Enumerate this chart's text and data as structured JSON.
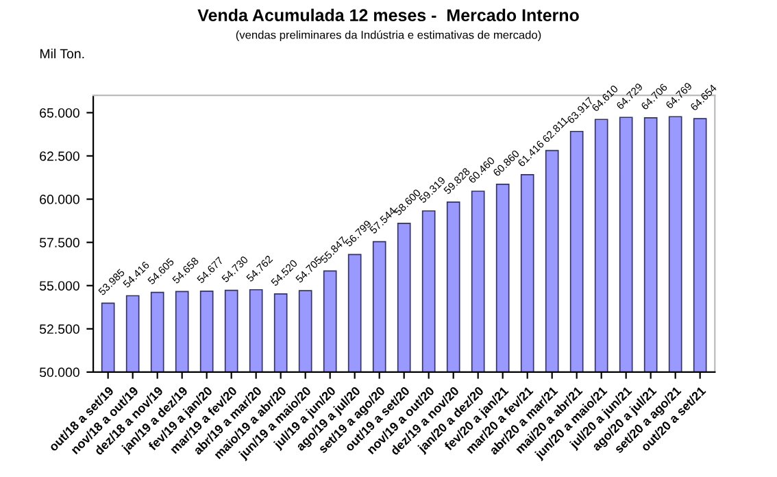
{
  "chart_data": {
    "type": "bar",
    "title": "Venda Acumulada 12 meses -  Mercado Interno",
    "subtitle": "(vendas preliminares da Indústria e estimativas de mercado)",
    "ylabel": "Mil Ton.",
    "categories": [
      "out/18 a set/19",
      "nov/18 a out/19",
      "dez/18 a nov/19",
      "jan/19 a dez/19",
      "fev/19 a jan/20",
      "mar/19 a fev/20",
      "abr/19 a mar/20",
      "maio/19 a abr/20",
      "jun/19 a maio/20",
      "jul/19 a jun/20",
      "ago/19 a jul/20",
      "set/19 a ago/20",
      "out/19 a set/20",
      "nov/19 a out/20",
      "dez/19 a nov/20",
      "jan/20 a dez/20",
      "fev/20 a jan/21",
      "mar/20 a fev/21",
      "abr/20 a mar/21",
      "mai/20 a abr/21",
      "jun/20 a maio/21",
      "jul/20 a jun/21",
      "ago/20 a jul/21",
      "set/20 a ago/21",
      "out/20 a set/21"
    ],
    "series": [
      {
        "color": "#9999ff",
        "values": [
          53985,
          54416,
          54605,
          54658,
          54677,
          54730,
          54762,
          54520,
          54705,
          55847,
          56799,
          57544,
          58600,
          59319,
          59828,
          60460,
          60860,
          61416,
          62811,
          63917,
          64610,
          64729,
          64706,
          64769,
          64654
        ],
        "value_labels": [
          "53.985",
          "54.416",
          "54.605",
          "54.658",
          "54.677",
          "54.730",
          "54.762",
          "54.520",
          "54.705",
          "55.847",
          "56.799",
          "57.544",
          "58.600",
          "59.319",
          "59.828",
          "60.460",
          "60.860",
          "61.416",
          "62.811",
          "63.917",
          "64.610",
          "64.729",
          "64.706",
          "64.769",
          "64.654"
        ]
      }
    ],
    "ylim": [
      50000,
      66000
    ],
    "yticks": [
      {
        "value": 50000,
        "label": "50.000"
      },
      {
        "value": 52500,
        "label": "52.500"
      },
      {
        "value": 55000,
        "label": "55.000"
      },
      {
        "value": 57500,
        "label": "57.500"
      },
      {
        "value": 60000,
        "label": "60.000"
      },
      {
        "value": 62500,
        "label": "62.500"
      },
      {
        "value": 65000,
        "label": "65.000"
      }
    ],
    "grid": false,
    "legend": false
  }
}
